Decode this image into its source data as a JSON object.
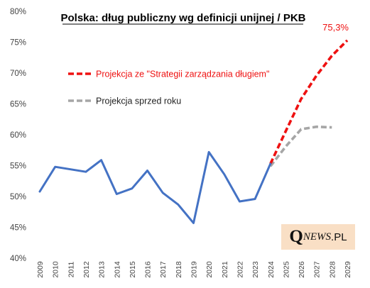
{
  "chart_data": {
    "type": "line",
    "title": "Polska: dług publiczny wg definicji unijnej / PKB",
    "xlabel": "",
    "ylabel": "",
    "ylim": [
      40,
      80
    ],
    "yticks": [
      "40%",
      "45%",
      "50%",
      "55%",
      "60%",
      "65%",
      "70%",
      "75%",
      "80%"
    ],
    "x": [
      "2009",
      "2010",
      "2011",
      "2012",
      "2013",
      "2014",
      "2015",
      "2016",
      "2017",
      "2018",
      "2019",
      "2020",
      "2021",
      "2022",
      "2023",
      "2024",
      "2025",
      "2026",
      "2027",
      "2028",
      "2029"
    ],
    "grid": false,
    "legend_position": "top-left",
    "series": [
      {
        "name": "",
        "color": "#4472c4",
        "style": "solid",
        "points": [
          [
            "2009",
            50.8
          ],
          [
            "2010",
            54.8
          ],
          [
            "2011",
            54.4
          ],
          [
            "2012",
            54.0
          ],
          [
            "2013",
            55.9
          ],
          [
            "2014",
            50.4
          ],
          [
            "2015",
            51.3
          ],
          [
            "2016",
            54.2
          ],
          [
            "2017",
            50.6
          ],
          [
            "2018",
            48.7
          ],
          [
            "2019",
            45.7
          ],
          [
            "2020",
            57.2
          ],
          [
            "2021",
            53.6
          ],
          [
            "2022",
            49.2
          ],
          [
            "2023",
            49.6
          ],
          [
            "2024",
            55.3
          ]
        ]
      },
      {
        "name": "Projekcja ze \"Strategii zarządzania długiem\"",
        "color": "#ee1111",
        "style": "dashed",
        "points": [
          [
            "2024",
            55.3
          ],
          [
            "2025",
            60.6
          ],
          [
            "2026",
            65.8
          ],
          [
            "2027",
            69.6
          ],
          [
            "2028",
            72.8
          ],
          [
            "2029",
            75.3
          ]
        ]
      },
      {
        "name": "Projekcja sprzed roku",
        "color": "#a6a6a6",
        "style": "dashed",
        "points": [
          [
            "2024",
            54.9
          ],
          [
            "2025",
            58.1
          ],
          [
            "2026",
            60.9
          ],
          [
            "2027",
            61.3
          ],
          [
            "2028",
            61.2
          ]
        ]
      }
    ],
    "annotations": [
      {
        "text": "75,3%",
        "x": "2029",
        "y": 75.3,
        "color": "#ee1111"
      }
    ]
  },
  "watermark": {
    "q": "Q",
    "rest": "NEWS",
    "suffix": ".PL"
  }
}
